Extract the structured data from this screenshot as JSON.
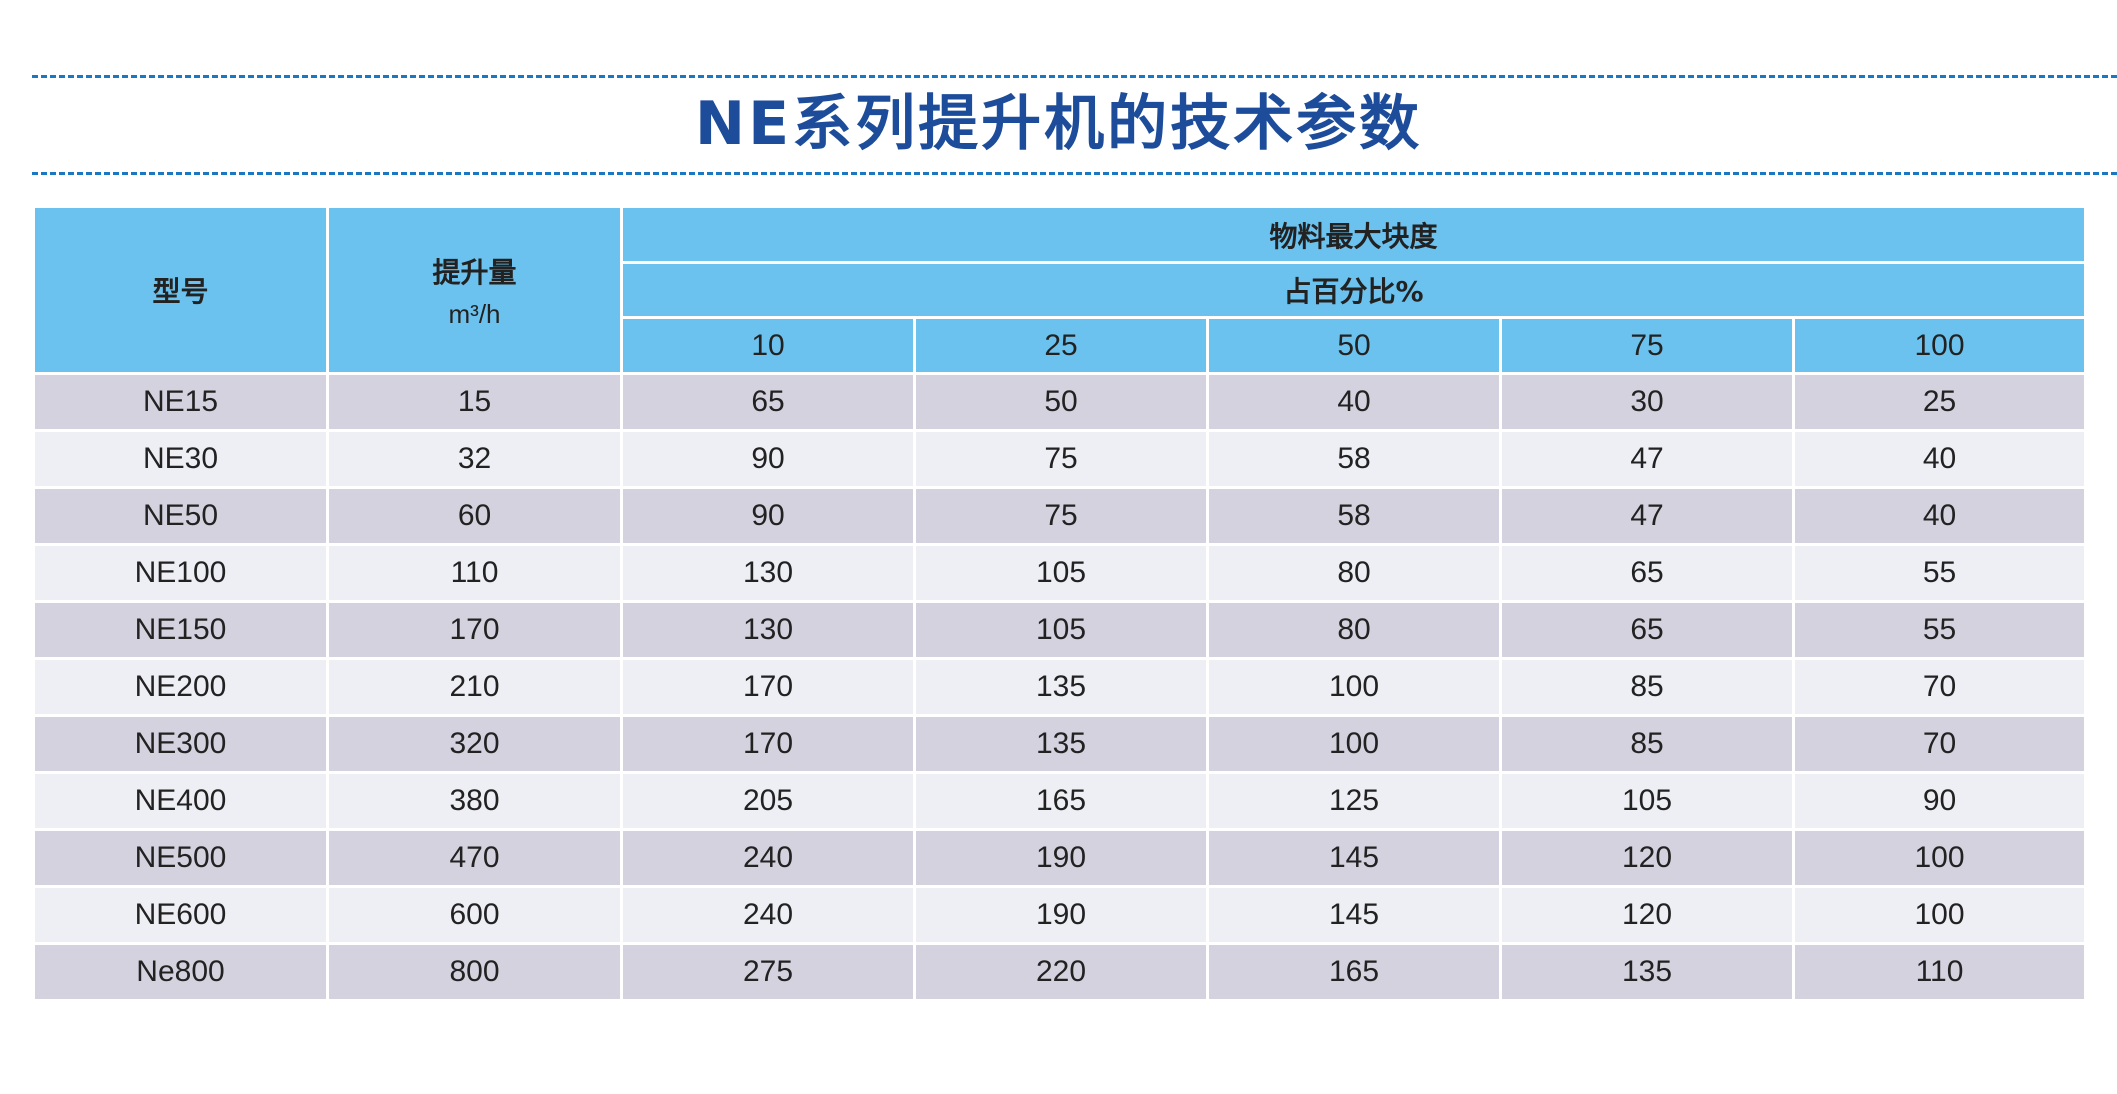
{
  "title": "NE系列提升机的技术参数",
  "table": {
    "header": {
      "model": "型号",
      "capacity": "提升量",
      "capacity_unit": "m³/h",
      "lump_size": "物料最大块度",
      "percent": "占百分比%",
      "percent_columns": [
        "10",
        "25",
        "50",
        "75",
        "100"
      ]
    },
    "rows": [
      [
        "NE15",
        "15",
        "65",
        "50",
        "40",
        "30",
        "25"
      ],
      [
        "NE30",
        "32",
        "90",
        "75",
        "58",
        "47",
        "40"
      ],
      [
        "NE50",
        "60",
        "90",
        "75",
        "58",
        "47",
        "40"
      ],
      [
        "NE100",
        "110",
        "130",
        "105",
        "80",
        "65",
        "55"
      ],
      [
        "NE150",
        "170",
        "130",
        "105",
        "80",
        "65",
        "55"
      ],
      [
        "NE200",
        "210",
        "170",
        "135",
        "100",
        "85",
        "70"
      ],
      [
        "NE300",
        "320",
        "170",
        "135",
        "100",
        "85",
        "70"
      ],
      [
        "NE400",
        "380",
        "205",
        "165",
        "125",
        "105",
        "90"
      ],
      [
        "NE500",
        "470",
        "240",
        "190",
        "145",
        "120",
        "100"
      ],
      [
        "NE600",
        "600",
        "240",
        "190",
        "145",
        "120",
        "100"
      ],
      [
        "Ne800",
        "800",
        "275",
        "220",
        "165",
        "135",
        "110"
      ]
    ]
  },
  "colors": {
    "title": "#1d4d9a",
    "dash": "#1a78c2",
    "header_bg": "#6cc2ee",
    "row_odd": "#d4d2df",
    "row_even": "#eeeff5"
  }
}
